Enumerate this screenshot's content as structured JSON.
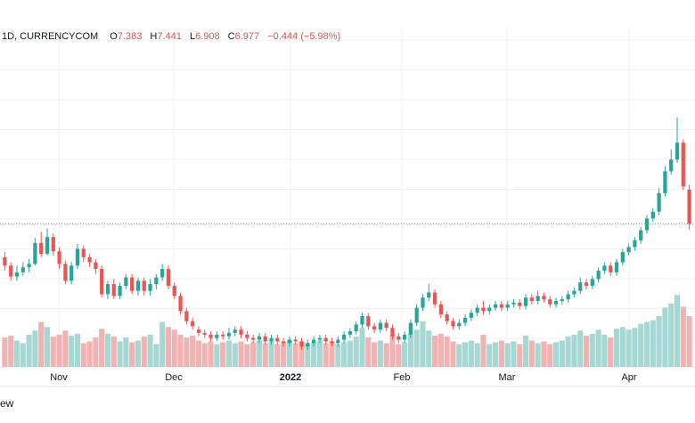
{
  "legend": {
    "symbol": "1D, CURRENCYCOM",
    "open_label": "O",
    "open": "7.383",
    "high_label": "H",
    "high": "7.441",
    "low_label": "L",
    "low": "6.908",
    "close_label": "C",
    "close": "6.977",
    "change": "−0.444 (−5.98%)"
  },
  "footer_fragment": "ew",
  "colors": {
    "up": "#26a69a",
    "down": "#ef5350",
    "up_volume": "#a6d8d3",
    "down_volume": "#f1b3b2",
    "grid": "#eef0f3",
    "last_price_line": "#8b8f9a",
    "axis_text": "#131722"
  },
  "chart_data": {
    "type": "candlestick",
    "price_range": [
      5.7,
      9.0
    ],
    "grid": true,
    "x_axis_labels": [
      "Nov",
      "Dec",
      "2022",
      "Feb",
      "Mar",
      "Apr"
    ],
    "last_price": 6.977,
    "candles": [
      [
        6.58,
        6.48,
        6.64,
        6.42,
        2
      ],
      [
        6.48,
        6.35,
        6.52,
        6.3,
        2
      ],
      [
        6.35,
        6.4,
        6.48,
        6.3,
        1
      ],
      [
        6.4,
        6.46,
        6.52,
        6.36,
        1
      ],
      [
        6.46,
        6.5,
        6.56,
        6.4,
        2
      ],
      [
        6.5,
        6.75,
        6.81,
        6.48,
        3
      ],
      [
        6.75,
        6.62,
        6.88,
        6.58,
        4
      ],
      [
        6.62,
        6.82,
        6.92,
        6.6,
        3
      ],
      [
        6.82,
        6.65,
        6.86,
        6.6,
        2
      ],
      [
        6.65,
        6.5,
        6.7,
        6.44,
        2
      ],
      [
        6.5,
        6.3,
        6.54,
        6.26,
        3
      ],
      [
        6.3,
        6.48,
        6.52,
        6.26,
        2
      ],
      [
        6.48,
        6.68,
        6.74,
        6.44,
        2
      ],
      [
        6.68,
        6.58,
        6.72,
        6.52,
        1
      ],
      [
        6.58,
        6.52,
        6.62,
        6.46,
        1
      ],
      [
        6.52,
        6.44,
        6.56,
        6.38,
        2
      ],
      [
        6.44,
        6.14,
        6.48,
        6.1,
        3
      ],
      [
        6.14,
        6.26,
        6.3,
        6.08,
        2
      ],
      [
        6.26,
        6.12,
        6.32,
        6.08,
        2
      ],
      [
        6.12,
        6.24,
        6.28,
        6.08,
        1
      ],
      [
        6.24,
        6.34,
        6.38,
        6.2,
        2
      ],
      [
        6.34,
        6.18,
        6.38,
        6.14,
        1
      ],
      [
        6.18,
        6.3,
        6.34,
        6.12,
        1
      ],
      [
        6.3,
        6.18,
        6.34,
        6.12,
        2
      ],
      [
        6.18,
        6.26,
        6.32,
        6.12,
        2
      ],
      [
        6.26,
        6.34,
        6.38,
        6.2,
        1
      ],
      [
        6.34,
        6.44,
        6.5,
        6.3,
        4
      ],
      [
        6.44,
        6.24,
        6.48,
        6.2,
        3
      ],
      [
        6.24,
        6.12,
        6.28,
        6.08,
        3
      ],
      [
        6.12,
        5.94,
        6.16,
        5.9,
        2
      ],
      [
        5.94,
        5.82,
        5.98,
        5.78,
        2
      ],
      [
        5.82,
        5.76,
        5.86,
        5.72,
        2
      ],
      [
        5.72,
        5.68,
        5.76,
        5.64,
        1
      ],
      [
        5.68,
        5.66,
        5.72,
        5.62,
        1
      ],
      [
        5.66,
        5.62,
        5.7,
        5.58,
        1
      ],
      [
        5.62,
        5.66,
        5.7,
        5.58,
        1
      ],
      [
        5.66,
        5.64,
        5.7,
        5.6,
        1
      ],
      [
        5.64,
        5.68,
        5.74,
        5.6,
        1
      ],
      [
        5.68,
        5.72,
        5.76,
        5.64,
        1
      ],
      [
        5.72,
        5.66,
        5.76,
        5.62,
        1
      ],
      [
        5.66,
        5.62,
        5.7,
        5.58,
        1
      ],
      [
        5.62,
        5.6,
        5.66,
        5.56,
        1
      ],
      [
        5.6,
        5.64,
        5.68,
        5.56,
        1
      ],
      [
        5.64,
        5.58,
        5.68,
        5.54,
        1
      ],
      [
        5.58,
        5.62,
        5.66,
        5.54,
        1
      ],
      [
        5.62,
        5.58,
        5.66,
        5.54,
        1
      ],
      [
        5.58,
        5.56,
        5.62,
        5.52,
        1
      ],
      [
        5.56,
        5.6,
        5.64,
        5.52,
        1
      ],
      [
        5.6,
        5.58,
        5.64,
        5.54,
        1
      ],
      [
        5.58,
        5.52,
        5.62,
        5.48,
        1
      ],
      [
        5.52,
        5.56,
        5.6,
        5.48,
        1
      ],
      [
        5.56,
        5.6,
        5.64,
        5.52,
        1
      ],
      [
        5.6,
        5.62,
        5.66,
        5.56,
        1
      ],
      [
        5.62,
        5.58,
        5.66,
        5.54,
        1
      ],
      [
        5.58,
        5.56,
        5.62,
        5.52,
        1
      ],
      [
        5.56,
        5.6,
        5.64,
        5.52,
        1
      ],
      [
        5.6,
        5.66,
        5.7,
        5.56,
        1
      ],
      [
        5.66,
        5.7,
        5.74,
        5.62,
        1
      ],
      [
        5.7,
        5.78,
        5.82,
        5.66,
        2
      ],
      [
        5.78,
        5.88,
        5.92,
        5.74,
        3
      ],
      [
        5.88,
        5.76,
        5.92,
        5.72,
        2
      ],
      [
        5.76,
        5.72,
        5.8,
        5.68,
        1
      ],
      [
        5.72,
        5.8,
        5.84,
        5.68,
        1
      ],
      [
        5.8,
        5.74,
        5.84,
        5.7,
        1
      ],
      [
        5.74,
        5.64,
        5.78,
        5.6,
        2
      ],
      [
        5.64,
        5.6,
        5.68,
        5.56,
        1
      ],
      [
        5.6,
        5.66,
        5.7,
        5.56,
        1
      ],
      [
        5.66,
        5.8,
        5.84,
        5.62,
        2
      ],
      [
        5.8,
        5.98,
        6.02,
        5.76,
        3
      ],
      [
        5.98,
        6.1,
        6.14,
        5.94,
        4
      ],
      [
        6.1,
        6.16,
        6.26,
        6.06,
        3
      ],
      [
        6.16,
        6.02,
        6.2,
        5.98,
        2
      ],
      [
        6.02,
        5.9,
        6.06,
        5.86,
        2
      ],
      [
        5.9,
        5.82,
        5.94,
        5.78,
        2
      ],
      [
        5.82,
        5.76,
        5.86,
        5.72,
        1
      ],
      [
        5.76,
        5.8,
        5.84,
        5.72,
        1
      ],
      [
        5.8,
        5.86,
        5.9,
        5.76,
        1
      ],
      [
        5.86,
        5.92,
        5.96,
        5.82,
        1
      ],
      [
        5.92,
        5.98,
        6.02,
        5.88,
        1
      ],
      [
        5.98,
        5.94,
        6.06,
        5.9,
        2
      ],
      [
        5.94,
        5.98,
        6.02,
        5.9,
        1
      ],
      [
        5.98,
        6.02,
        6.06,
        5.94,
        1
      ],
      [
        6.02,
        5.98,
        6.06,
        5.94,
        1
      ],
      [
        5.98,
        6.02,
        6.06,
        5.94,
        1
      ],
      [
        6.02,
        6.04,
        6.08,
        5.98,
        1
      ],
      [
        6.04,
        6.0,
        6.08,
        5.96,
        1
      ],
      [
        6.0,
        6.1,
        6.14,
        5.96,
        2
      ],
      [
        6.1,
        6.06,
        6.14,
        6.02,
        1
      ],
      [
        6.06,
        6.12,
        6.18,
        6.02,
        1
      ],
      [
        6.12,
        6.08,
        6.16,
        6.04,
        1
      ],
      [
        6.08,
        6.02,
        6.12,
        5.98,
        1
      ],
      [
        6.02,
        6.06,
        6.1,
        5.98,
        1
      ],
      [
        6.06,
        6.08,
        6.12,
        6.02,
        1
      ],
      [
        6.08,
        6.14,
        6.18,
        6.04,
        2
      ],
      [
        6.14,
        6.18,
        6.22,
        6.1,
        2
      ],
      [
        6.18,
        6.28,
        6.34,
        6.14,
        3
      ],
      [
        6.28,
        6.24,
        6.32,
        6.2,
        2
      ],
      [
        6.24,
        6.32,
        6.36,
        6.2,
        2
      ],
      [
        6.32,
        6.42,
        6.46,
        6.28,
        3
      ],
      [
        6.42,
        6.48,
        6.52,
        6.38,
        2
      ],
      [
        6.48,
        6.4,
        6.52,
        6.36,
        2
      ],
      [
        6.4,
        6.52,
        6.56,
        6.36,
        3
      ],
      [
        6.52,
        6.64,
        6.68,
        6.48,
        3
      ],
      [
        6.64,
        6.7,
        6.74,
        6.6,
        3
      ],
      [
        6.7,
        6.78,
        6.82,
        6.66,
        3
      ],
      [
        6.78,
        6.9,
        6.94,
        6.74,
        4
      ],
      [
        6.9,
        7.04,
        7.08,
        6.86,
        4
      ],
      [
        7.04,
        7.12,
        7.16,
        7.0,
        4
      ],
      [
        7.12,
        7.34,
        7.4,
        7.08,
        5
      ],
      [
        7.34,
        7.6,
        7.66,
        7.3,
        6
      ],
      [
        7.6,
        7.74,
        7.86,
        7.56,
        7
      ],
      [
        7.74,
        7.94,
        8.24,
        7.7,
        8
      ],
      [
        7.94,
        7.42,
        7.98,
        7.38,
        6
      ],
      [
        7.383,
        6.977,
        7.441,
        6.908,
        5
      ]
    ]
  }
}
